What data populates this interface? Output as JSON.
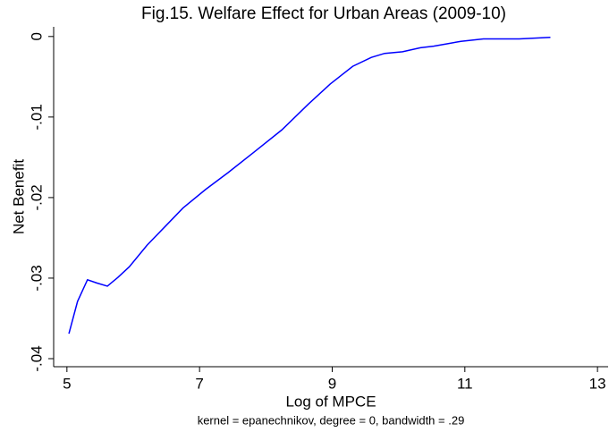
{
  "chart_data": {
    "type": "line",
    "title": "Fig.15. Welfare Effect for Urban Areas (2009-10)",
    "x_label": "Log of MPCE",
    "y_label": "Net Benefit",
    "note": "kernel = epanechnikov, degree = 0, bandwidth = .29",
    "x": [
      5.03,
      5.16,
      5.31,
      5.45,
      5.61,
      5.77,
      5.94,
      6.21,
      6.48,
      6.75,
      7.09,
      7.43,
      7.83,
      8.24,
      8.64,
      8.97,
      9.31,
      9.59,
      9.79,
      10.06,
      10.33,
      10.53,
      10.74,
      10.94,
      11.28,
      11.82,
      12.29
    ],
    "series": [
      {
        "color": "#0000ff",
        "values": [
          -0.0369,
          -0.0329,
          -0.0302,
          -0.0306,
          -0.031,
          -0.0299,
          -0.0286,
          -0.0259,
          -0.0236,
          -0.0213,
          -0.019,
          -0.0169,
          -0.0143,
          -0.0116,
          -0.0084,
          -0.0059,
          -0.0037,
          -0.0026,
          -0.0021,
          -0.0019,
          -0.0014,
          -0.0012,
          -0.0009,
          -0.0006,
          -0.0003,
          -0.0003,
          -0.0001
        ]
      }
    ],
    "xlim": [
      4.8,
      13.16
    ],
    "ylim": [
      -0.041,
      0.0012
    ],
    "xticks": [
      5,
      7,
      9,
      11,
      13
    ],
    "yticks": [
      0,
      {
        "value": -0.01,
        "label": "-.01"
      },
      {
        "value": -0.02,
        "label": "-.02"
      },
      {
        "value": -0.03,
        "label": "-.03"
      },
      {
        "value": -0.04,
        "label": "-.04"
      }
    ],
    "grid": false
  }
}
